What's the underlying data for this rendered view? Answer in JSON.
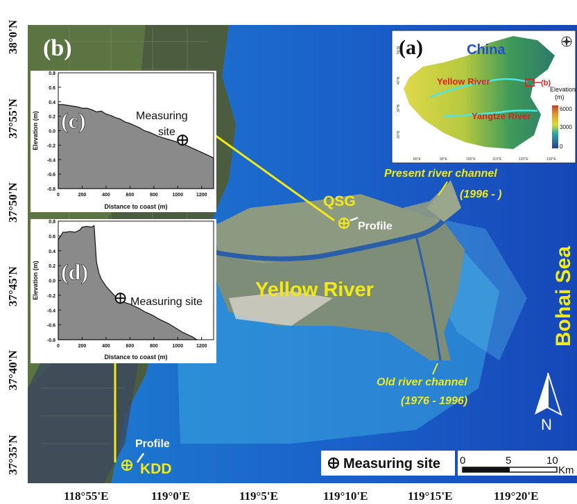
{
  "panels": {
    "b": "(b)",
    "c": "(c)",
    "d": "(d)",
    "a": "(a)"
  },
  "axes": {
    "latitude_labels": [
      "38°0'N",
      "37°55'N",
      "37°50'N",
      "37°45'N",
      "37°40'N",
      "37°35'N"
    ],
    "longitude_labels": [
      "118°55'E",
      "119°0'E",
      "119°5'E",
      "119°10'E",
      "119°15'E",
      "119°20'E"
    ]
  },
  "map_labels": {
    "qsg": "QSG",
    "kdd": "KDD",
    "profile_qsg": "Profile",
    "profile_kdd": "Profile",
    "yellow_river": "Yellow River",
    "bohai_sea": "Bohai  Sea",
    "present_channel": "Present river channel",
    "present_years": "(1996  -  )",
    "old_channel": "Old river channel",
    "old_years": "(1976 - 1996)",
    "north": "N"
  },
  "legend": {
    "measuring_site": "Measuring site",
    "scale_ticks": [
      "0",
      "5",
      "10"
    ],
    "scale_unit": "Km"
  },
  "inset_a": {
    "china": "China",
    "yellow_river": "Yellow River",
    "yangtze_river": "Yangtze River",
    "b_marker": "(b)",
    "elevation_title": "Elevation",
    "elevation_unit": "(m)",
    "colorbar_ticks": [
      "6000",
      "3000",
      "0"
    ],
    "lat_ticks": [
      "50°N",
      "40°N",
      "30°N",
      "20°N"
    ],
    "lon_ticks": [
      "80°E",
      "90°E",
      "100°E",
      "110°E",
      "120°E",
      "130°E"
    ]
  },
  "chart_data": [
    {
      "id": "c",
      "type": "area",
      "title": "",
      "annotation": "Measuring site",
      "xlabel": "Distance to coast (m)",
      "ylabel": "Elevation (m)",
      "xlim": [
        0,
        1300
      ],
      "ylim": [
        -0.8,
        0.8
      ],
      "xticks": [
        "0",
        "200",
        "400",
        "600",
        "800",
        "1000",
        "1200"
      ],
      "yticks": [
        "0.8",
        "0.6",
        "0.4",
        "0.2",
        "0.0",
        "-0.2",
        "-0.4",
        "-0.6",
        "-0.8"
      ],
      "x": [
        0,
        40,
        80,
        120,
        160,
        200,
        240,
        280,
        320,
        360,
        400,
        440,
        480,
        520,
        560,
        600,
        640,
        680,
        720,
        760,
        800,
        840,
        880,
        920,
        960,
        1000,
        1040,
        1080,
        1120,
        1160,
        1200,
        1240,
        1280,
        1300
      ],
      "y": [
        0.36,
        0.36,
        0.35,
        0.34,
        0.33,
        0.31,
        0.31,
        0.29,
        0.26,
        0.27,
        0.23,
        0.21,
        0.18,
        0.16,
        0.12,
        0.1,
        0.07,
        0.04,
        0.0,
        -0.02,
        -0.05,
        -0.08,
        -0.1,
        -0.12,
        -0.14,
        -0.16,
        -0.18,
        -0.21,
        -0.24,
        -0.27,
        -0.3,
        -0.33,
        -0.36,
        -0.38
      ],
      "marker_x": 1040,
      "marker_y": -0.13
    },
    {
      "id": "d",
      "type": "area",
      "title": "",
      "annotation": "Measuring site",
      "xlabel": "Distance to coast (m)",
      "ylabel": "Elevation (m)",
      "xlim": [
        0,
        1300
      ],
      "ylim": [
        -0.8,
        0.8
      ],
      "xticks": [
        "0",
        "200",
        "400",
        "600",
        "800",
        "1000",
        "1200"
      ],
      "yticks": [
        "0.8",
        "0.6",
        "0.4",
        "0.2",
        "0.0",
        "-0.2",
        "-0.4",
        "-0.6",
        "-0.8"
      ],
      "x": [
        0,
        20,
        40,
        60,
        100,
        140,
        180,
        200,
        240,
        280,
        300,
        320,
        340,
        360,
        400,
        440,
        480,
        520,
        560,
        600,
        640,
        680,
        720,
        760,
        800,
        840,
        880,
        920,
        960,
        1000,
        1040,
        1080,
        1120,
        1160
      ],
      "y": [
        0.55,
        0.6,
        0.65,
        0.65,
        0.66,
        0.65,
        0.68,
        0.72,
        0.73,
        0.72,
        0.74,
        0.25,
        0.1,
        0.02,
        -0.08,
        -0.15,
        -0.22,
        -0.26,
        -0.3,
        -0.32,
        -0.35,
        -0.38,
        -0.42,
        -0.45,
        -0.48,
        -0.52,
        -0.55,
        -0.58,
        -0.62,
        -0.66,
        -0.7,
        -0.73,
        -0.76,
        -0.8
      ],
      "marker_x": 520,
      "marker_y": -0.24
    }
  ]
}
